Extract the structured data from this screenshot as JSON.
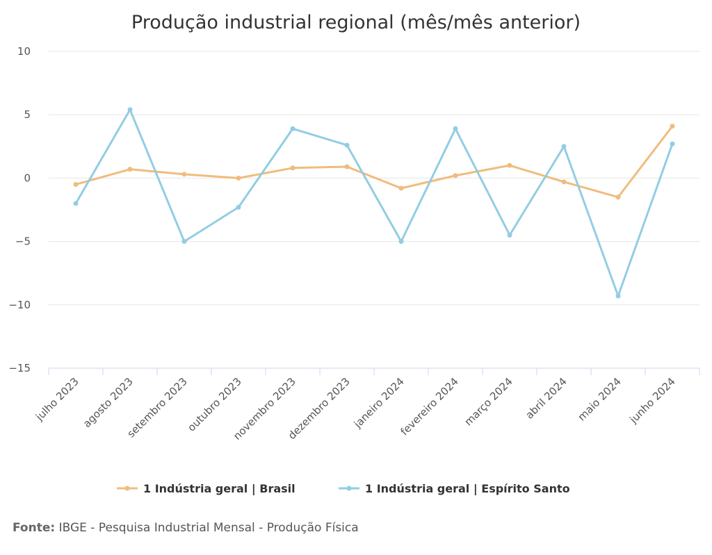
{
  "chart_data": {
    "type": "line",
    "title": "Produção industrial regional (mês/mês anterior)",
    "categories": [
      "julho 2023",
      "agosto 2023",
      "setembro 2023",
      "outubro 2023",
      "novembro 2023",
      "dezembro 2023",
      "janeiro 2024",
      "fevereiro 2024",
      "março 2024",
      "abril 2024",
      "maio 2024",
      "junho 2024"
    ],
    "series": [
      {
        "name": "1 Indústria geral | Brasil",
        "color": "#f0bc7c",
        "values": [
          -0.5,
          0.7,
          0.3,
          0.0,
          0.8,
          0.9,
          -0.8,
          0.2,
          1.0,
          -0.3,
          -1.5,
          4.1
        ]
      },
      {
        "name": "1 Indústria geral | Espírito Santo",
        "color": "#92cde3",
        "values": [
          -2.0,
          5.4,
          -5.0,
          -2.3,
          3.9,
          2.6,
          -5.0,
          3.9,
          -4.5,
          2.5,
          -9.3,
          2.7
        ]
      }
    ],
    "ylim": [
      -15,
      10
    ],
    "yticks": [
      "10",
      "5",
      "0",
      "−5",
      "−10",
      "−15"
    ],
    "grid": true,
    "legend": "bottom-center"
  },
  "footer": {
    "label": "Fonte:",
    "text": "IBGE - Pesquisa Industrial Mensal - Produção Física"
  }
}
